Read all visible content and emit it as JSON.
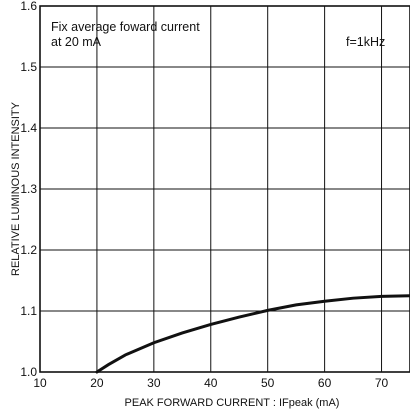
{
  "chart_data": {
    "type": "line",
    "title": "",
    "annotations": {
      "condition_line1": "Fix average foward current",
      "condition_line2": "at 20 mA",
      "frequency": "f=1kHz"
    },
    "xlabel": "PEAK FORWARD CURRENT : IFpeak (mA)",
    "ylabel": "RELATIVE LUMINOUS INTENSITY",
    "xlim": [
      10,
      75
    ],
    "ylim": [
      1.0,
      1.6
    ],
    "x_ticks": [
      10,
      20,
      30,
      40,
      50,
      60,
      70
    ],
    "y_ticks": [
      1.0,
      1.1,
      1.2,
      1.3,
      1.4,
      1.5,
      1.6
    ],
    "x_tick_labels": [
      "10",
      "20",
      "30",
      "40",
      "50",
      "60",
      "70"
    ],
    "y_tick_labels": [
      "1.0",
      "1.1",
      "1.2",
      "1.3",
      "1.4",
      "1.5",
      "1.6"
    ],
    "grid": true,
    "series": [
      {
        "x": [
          20,
          22,
          25,
          30,
          35,
          40,
          45,
          50,
          55,
          60,
          65,
          70,
          75
        ],
        "y": [
          1.0,
          1.012,
          1.028,
          1.048,
          1.064,
          1.078,
          1.09,
          1.101,
          1.11,
          1.116,
          1.121,
          1.124,
          1.125
        ]
      }
    ]
  }
}
